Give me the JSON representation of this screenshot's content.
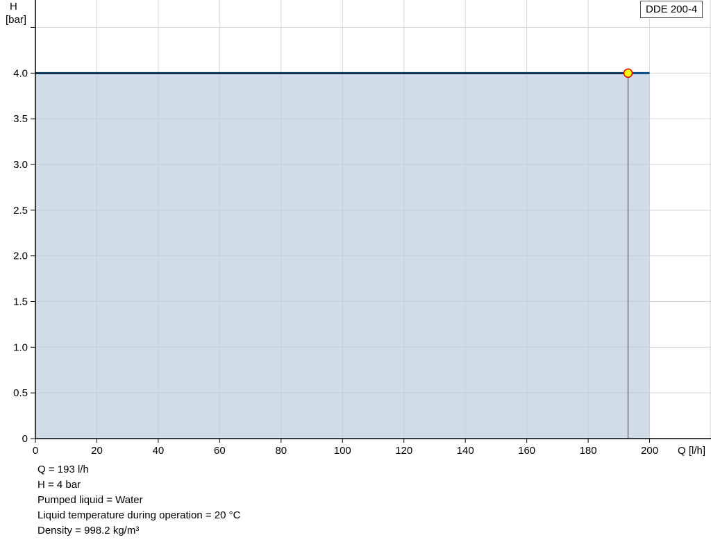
{
  "chart_data": {
    "type": "area",
    "title": "",
    "legend": {
      "label": "DDE 200-4",
      "placement": "top-right"
    },
    "xlabel": "Q [l/h]",
    "ylabel": [
      "H",
      "[bar]"
    ],
    "xlim": [
      0,
      220
    ],
    "ylim": [
      0,
      4.8
    ],
    "x_ticks": [
      0,
      20,
      40,
      60,
      80,
      100,
      120,
      140,
      160,
      180,
      200
    ],
    "x_tick_labels": [
      "0",
      "20",
      "40",
      "60",
      "80",
      "100",
      "120",
      "140",
      "160",
      "180",
      "200"
    ],
    "y_ticks": [
      0,
      0.5,
      1.0,
      1.5,
      2.0,
      2.5,
      3.0,
      3.5,
      4.0,
      4.5
    ],
    "y_tick_labels": [
      "0",
      "0.5",
      "1.0",
      "1.5",
      "2.0",
      "2.5",
      "3.0",
      "3.5",
      "4.0",
      ""
    ],
    "grid": true,
    "series": [
      {
        "x": [
          0,
          200
        ],
        "y": [
          4.0,
          4.0
        ],
        "color": "#0a4a80",
        "fill": "#d0dce7"
      }
    ],
    "operating_point": {
      "x": 193,
      "y": 4.0,
      "color": "#ffff00",
      "stroke": "#e00000"
    }
  },
  "info": [
    "Q = 193 l/h",
    "H = 4 bar",
    "Pumped liquid = Water",
    "Liquid temperature during operation = 20 °C",
    "Density = 998.2 kg/m³"
  ]
}
